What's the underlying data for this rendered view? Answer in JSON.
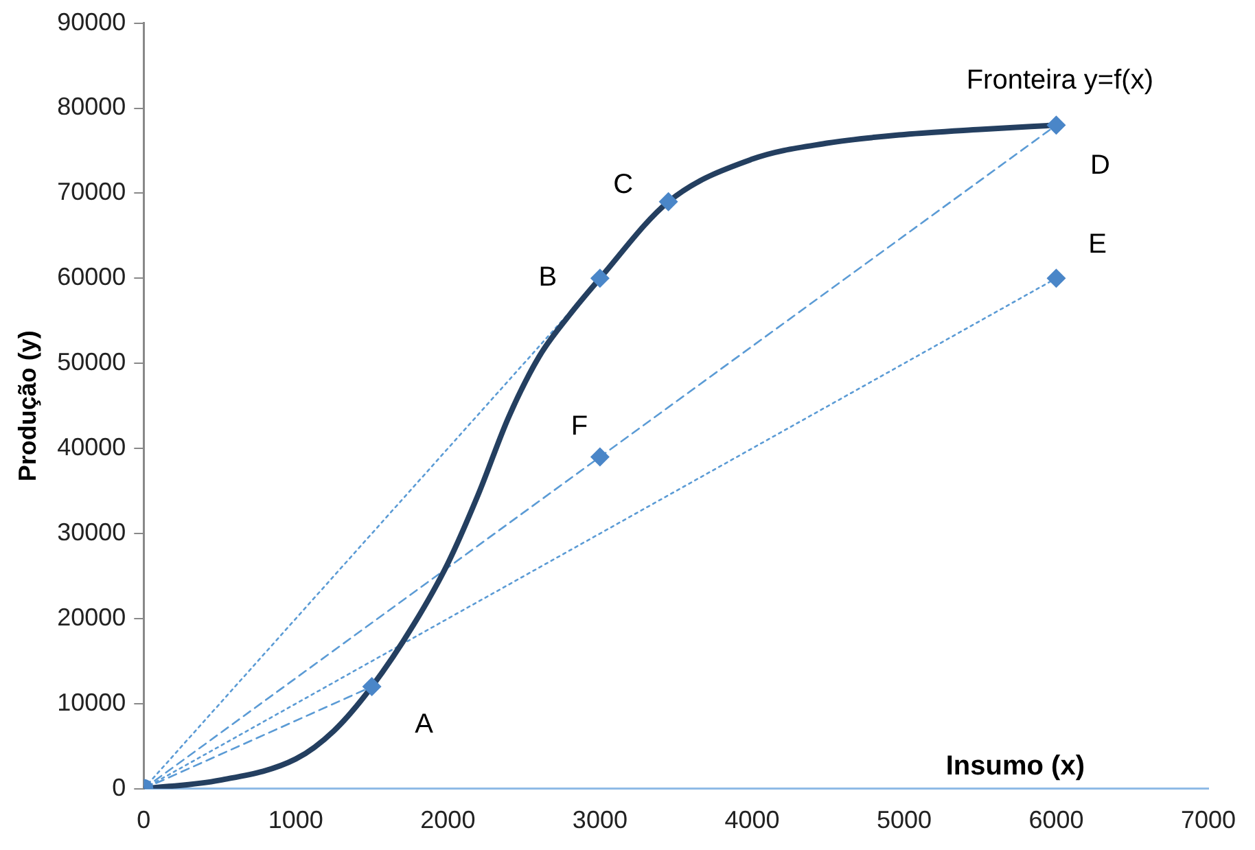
{
  "chart_data": {
    "type": "line",
    "xlabel": "Insumo (x)",
    "ylabel": "Produção (y)",
    "xlim": [
      0,
      7000
    ],
    "xticks": [
      0,
      1000,
      2000,
      3000,
      4000,
      5000,
      6000,
      7000
    ],
    "ylim": [
      0,
      90000
    ],
    "yticks": [
      0,
      10000,
      20000,
      30000,
      40000,
      50000,
      60000,
      70000,
      80000,
      90000
    ],
    "grid": false,
    "legend": false,
    "series": [
      {
        "color": "#243f60",
        "marker": "none",
        "line_style": "solid",
        "x": [
          0,
          500,
          1000,
          1250,
          1500,
          1775,
          2000,
          2200,
          2400,
          2600,
          2800,
          3000,
          3450,
          4000,
          4500,
          5000,
          5500,
          6000
        ],
        "values": [
          0,
          1000,
          3500,
          6800,
          12000,
          19300,
          26500,
          34600,
          43700,
          50800,
          55700,
          60000,
          69000,
          74000,
          75900,
          76900,
          77500,
          78000
        ]
      },
      {
        "color": "#5b9bd5",
        "marker": "none",
        "line_style": "dashed",
        "x": [
          0,
          1500
        ],
        "values": [
          0,
          12000
        ]
      },
      {
        "color": "#5b9bd5",
        "marker": "none",
        "line_style": "dotted",
        "x": [
          0,
          3000
        ],
        "values": [
          0,
          60000
        ]
      },
      {
        "color": "#5b9bd5",
        "marker": "none",
        "line_style": "dashed",
        "x": [
          0,
          6000
        ],
        "values": [
          0,
          78000
        ]
      },
      {
        "color": "#5b9bd5",
        "marker": "none",
        "line_style": "dotted",
        "x": [
          0,
          6000
        ],
        "values": [
          0,
          60000
        ]
      },
      {
        "type": "scatter",
        "color": "#4a86c8",
        "marker": "diamond",
        "x": [
          1500,
          3000,
          3450,
          6000,
          6000,
          3000
        ],
        "values": [
          12000,
          60000,
          69000,
          78000,
          60000,
          39000
        ]
      },
      {
        "type": "scatter",
        "color": "#4a86c8",
        "marker": "circle",
        "x": [
          0
        ],
        "values": [
          0
        ]
      }
    ],
    "annotations": [
      {
        "text": "A",
        "x": 1500,
        "y": 12000
      },
      {
        "text": "B",
        "x": 3000,
        "y": 60000
      },
      {
        "text": "C",
        "x": 3450,
        "y": 69000
      },
      {
        "text": "D",
        "x": 6000,
        "y": 78000
      },
      {
        "text": "E",
        "x": 6000,
        "y": 60000
      },
      {
        "text": "F",
        "x": 3000,
        "y": 39000
      },
      "Fronteira y=f(x)"
    ]
  }
}
